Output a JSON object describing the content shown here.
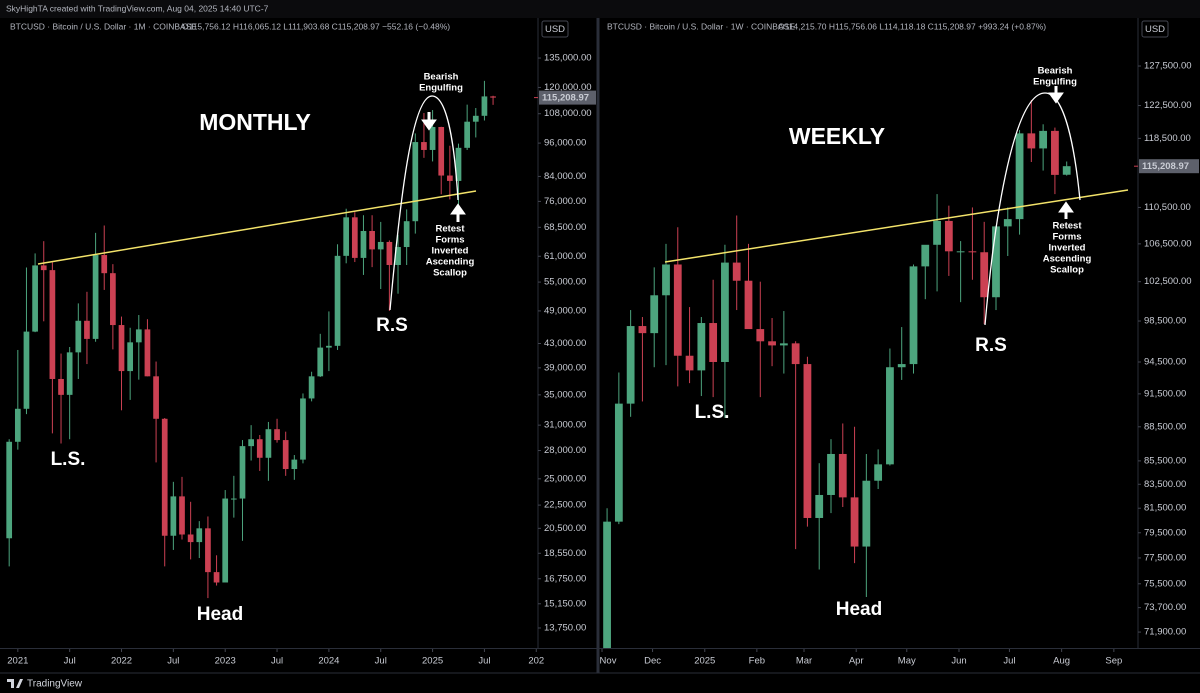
{
  "header": "SkyHighTA created with TradingView.com, Aug 04, 2025 14:40 UTC-7",
  "footer": "TradingView",
  "chart_data": [
    {
      "type": "candlestick",
      "title": "BTCUSD · Bitcoin / U.S. Dollar · 1M · COINBASE",
      "ohlc_label": "O115,756.12 H116,065.12 L111,903.68 C115,208.97 −552.16 (−0.48%)",
      "ohlc_label_color": "#cc4153",
      "currency": "USD",
      "log_scale": true,
      "grid": false,
      "up_color": "#4da57e",
      "down_color": "#cc4153",
      "xlim": [
        -1.6,
        60.2
      ],
      "xticks": [
        {
          "value": 0,
          "label": "2021"
        },
        {
          "value": 6,
          "label": "Jul"
        },
        {
          "value": 12,
          "label": "2022"
        },
        {
          "value": 18,
          "label": "Jul"
        },
        {
          "value": 24,
          "label": "2023"
        },
        {
          "value": 30,
          "label": "Jul"
        },
        {
          "value": 36,
          "label": "2024"
        },
        {
          "value": 42,
          "label": "Jul"
        },
        {
          "value": 48,
          "label": "2025"
        },
        {
          "value": 54,
          "label": "Jul"
        },
        {
          "value": 60,
          "label": "202"
        }
      ],
      "ylim": [
        12690,
        158500
      ],
      "yticks": [
        {
          "value": 135000,
          "label": "135,000.00"
        },
        {
          "value": 120000,
          "label": "120,000.00"
        },
        {
          "value": 108000,
          "label": "108,000.00"
        },
        {
          "value": 96000,
          "label": "96,000.00"
        },
        {
          "value": 84000,
          "label": "84,000.00"
        },
        {
          "value": 76000,
          "label": "76,000.00"
        },
        {
          "value": 68500,
          "label": "68,500.00"
        },
        {
          "value": 61000,
          "label": "61,000.00"
        },
        {
          "value": 55000,
          "label": "55,000.00"
        },
        {
          "value": 49000,
          "label": "49,000.00"
        },
        {
          "value": 43000,
          "label": "43,000.00"
        },
        {
          "value": 39000,
          "label": "39,000.00"
        },
        {
          "value": 35000,
          "label": "35,000.00"
        },
        {
          "value": 31000,
          "label": "31,000.00"
        },
        {
          "value": 28000,
          "label": "28,000.00"
        },
        {
          "value": 25000,
          "label": "25,000.00"
        },
        {
          "value": 22500,
          "label": "22,500.00"
        },
        {
          "value": 20500,
          "label": "20,500.00"
        },
        {
          "value": 18550,
          "label": "18,550.00"
        },
        {
          "value": 16750,
          "label": "16,750.00"
        },
        {
          "value": 15150,
          "label": "15,150.00"
        },
        {
          "value": 13750,
          "label": "13,750.00"
        }
      ],
      "last_price": {
        "value": 115208.97,
        "label": "115,208.97"
      },
      "x": [
        -1,
        0,
        1,
        2,
        3,
        4,
        5,
        6,
        7,
        8,
        9,
        10,
        11,
        12,
        13,
        14,
        15,
        16,
        17,
        18,
        19,
        20,
        21,
        22,
        23,
        24,
        25,
        26,
        27,
        28,
        29,
        30,
        31,
        32,
        33,
        34,
        35,
        36,
        37,
        38,
        39,
        40,
        41,
        42,
        43,
        44,
        45,
        46,
        47,
        48,
        49,
        50,
        51,
        52,
        53,
        54,
        55
      ],
      "open": [
        19700,
        29000,
        33100,
        45100,
        58800,
        57700,
        37300,
        35000,
        41500,
        47100,
        43800,
        61300,
        57000,
        46300,
        38500,
        43200,
        45500,
        37700,
        31800,
        19900,
        23300,
        20000,
        19400,
        20500,
        17200,
        16500,
        23100,
        23100,
        28500,
        29300,
        27200,
        30500,
        29200,
        26000,
        27000,
        34500,
        37700,
        42300,
        42600,
        61100,
        71300,
        60600,
        67500,
        62700,
        64600,
        58900,
        63300,
        70200,
        96400,
        93400,
        102400,
        84300,
        82500,
        94200,
        104600,
        107100,
        115756.12
      ],
      "high": [
        29300,
        41900,
        58300,
        61700,
        64800,
        59500,
        41300,
        42400,
        50500,
        52900,
        67000,
        69000,
        59100,
        47900,
        45800,
        48200,
        47400,
        40000,
        31900,
        24700,
        25200,
        22800,
        21100,
        21500,
        18400,
        23900,
        25300,
        29200,
        31000,
        29800,
        31400,
        31800,
        30200,
        27500,
        35200,
        38400,
        44700,
        48900,
        64000,
        73800,
        72800,
        71900,
        71900,
        70000,
        65000,
        66500,
        73600,
        99800,
        108300,
        109600,
        102500,
        95000,
        95800,
        112000,
        110500,
        123200,
        116065.12
      ],
      "low": [
        17600,
        28100,
        32400,
        45000,
        47000,
        30000,
        28800,
        29300,
        37300,
        39600,
        43300,
        53300,
        42000,
        32900,
        34300,
        37200,
        37700,
        26700,
        17600,
        18800,
        19600,
        18100,
        18200,
        15500,
        16300,
        16500,
        21400,
        19500,
        26900,
        25800,
        24800,
        28900,
        25300,
        24900,
        26600,
        34100,
        37600,
        38500,
        41900,
        59300,
        59600,
        56600,
        58400,
        53500,
        49000,
        52500,
        58900,
        66800,
        90500,
        89200,
        78200,
        76600,
        74600,
        93400,
        98200,
        105100,
        111903.68
      ],
      "close": [
        29000,
        33100,
        45100,
        58800,
        57700,
        37300,
        35000,
        41500,
        47100,
        43800,
        61300,
        57000,
        46300,
        38500,
        43200,
        45500,
        37700,
        31800,
        19900,
        23300,
        20000,
        19400,
        20500,
        17200,
        16500,
        23100,
        23100,
        28500,
        29300,
        27200,
        30500,
        29200,
        26000,
        27000,
        34500,
        37700,
        42300,
        42600,
        61100,
        71300,
        60600,
        67500,
        62700,
        64600,
        58900,
        63300,
        70200,
        96400,
        93400,
        102400,
        84300,
        82500,
        94200,
        104600,
        107100,
        115756,
        115208.97
      ],
      "annotations": {
        "label": "MONTHLY",
        "left_shoulder": "L.S.",
        "head": "Head",
        "right_shoulder": "R.S",
        "top_note": [
          "Bearish",
          "Engulfing"
        ],
        "bottom_note": [
          "Retest",
          "Forms",
          "Inverted",
          "Ascending",
          "Scallop"
        ]
      }
    },
    {
      "type": "candlestick",
      "title": "BTCUSD · Bitcoin / U.S. Dollar · 1W · COINBASE",
      "ohlc_label": "O114,215.70 H115,756.06 L114,118.18 C115,208.97 +993.24 (+0.87%)",
      "ohlc_label_color": "#4da57e",
      "currency": "USD",
      "log_scale": true,
      "grid": false,
      "up_color": "#4da57e",
      "down_color": "#cc4153",
      "xlim": [
        -0.6,
        45.05
      ],
      "xticks": [
        {
          "value": -0.43,
          "label": "Nov"
        },
        {
          "value": 3.86,
          "label": "Dec"
        },
        {
          "value": 8.29,
          "label": "2025"
        },
        {
          "value": 12.71,
          "label": "Feb"
        },
        {
          "value": 16.71,
          "label": "Mar"
        },
        {
          "value": 21.14,
          "label": "Apr"
        },
        {
          "value": 25.43,
          "label": "May"
        },
        {
          "value": 29.86,
          "label": "Jun"
        },
        {
          "value": 34.14,
          "label": "Jul"
        },
        {
          "value": 38.57,
          "label": "Aug"
        },
        {
          "value": 43,
          "label": "Sep"
        }
      ],
      "ylim": [
        70750,
        133850
      ],
      "yticks": [
        {
          "value": 127500,
          "label": "127,500.00"
        },
        {
          "value": 122500,
          "label": "122,500.00"
        },
        {
          "value": 118500,
          "label": "118,500.00"
        },
        {
          "value": 110500,
          "label": "110,500.00"
        },
        {
          "value": 106500,
          "label": "106,500.00"
        },
        {
          "value": 102500,
          "label": "102,500.00"
        },
        {
          "value": 98500,
          "label": "98,500.00"
        },
        {
          "value": 94500,
          "label": "94,500.00"
        },
        {
          "value": 91500,
          "label": "91,500.00"
        },
        {
          "value": 88500,
          "label": "88,500.00"
        },
        {
          "value": 85500,
          "label": "85,500.00"
        },
        {
          "value": 83500,
          "label": "83,500.00"
        },
        {
          "value": 81500,
          "label": "81,500.00"
        },
        {
          "value": 79500,
          "label": "79,500.00"
        },
        {
          "value": 77500,
          "label": "77,500.00"
        },
        {
          "value": 75500,
          "label": "75,500.00"
        },
        {
          "value": 73700,
          "label": "73,700.00"
        },
        {
          "value": 71900,
          "label": "71,900.00"
        }
      ],
      "last_price": {
        "value": 115208.97,
        "label": "115,208.97"
      },
      "x": [
        0,
        1,
        2,
        3,
        4,
        5,
        6,
        7,
        8,
        9,
        10,
        11,
        12,
        13,
        14,
        15,
        16,
        17,
        18,
        19,
        20,
        21,
        22,
        23,
        24,
        25,
        26,
        27,
        28,
        29,
        30,
        31,
        32,
        33,
        34,
        35,
        36,
        37,
        38,
        39
      ],
      "open": [
        68800,
        80400,
        90600,
        98000,
        97300,
        101100,
        104300,
        95100,
        93700,
        98300,
        94500,
        104500,
        102600,
        97700,
        96500,
        96100,
        96300,
        94300,
        80700,
        82600,
        86100,
        82400,
        78400,
        83800,
        85200,
        94000,
        94300,
        104100,
        106400,
        109000,
        105700,
        105700,
        105600,
        100900,
        108400,
        109200,
        119100,
        117300,
        119400,
        114215.7
      ],
      "high": [
        81500,
        93500,
        99600,
        98900,
        104000,
        106500,
        108300,
        99900,
        98900,
        102700,
        106400,
        109600,
        106500,
        102500,
        98800,
        99500,
        96500,
        95000,
        85300,
        87400,
        88800,
        88500,
        86100,
        86500,
        95800,
        97900,
        104300,
        105800,
        112000,
        110700,
        106800,
        110500,
        108900,
        108500,
        110500,
        119500,
        123200,
        120200,
        119800,
        115756.06
      ],
      "low": [
        66800,
        80200,
        89400,
        90800,
        94000,
        94200,
        92200,
        92500,
        91300,
        91200,
        89300,
        99600,
        97800,
        91200,
        94100,
        93400,
        78200,
        80000,
        76600,
        81100,
        81600,
        77100,
        74500,
        83100,
        85100,
        92800,
        93400,
        100700,
        101500,
        103100,
        100400,
        102700,
        98200,
        99600,
        105200,
        107500,
        115700,
        114700,
        112000,
        114118.18
      ],
      "close": [
        80400,
        90600,
        98000,
        97300,
        101100,
        104300,
        95100,
        93700,
        98300,
        94500,
        104500,
        102600,
        97700,
        96500,
        96100,
        96300,
        94300,
        80700,
        82600,
        86100,
        82400,
        78400,
        83800,
        85200,
        94000,
        94300,
        104100,
        106400,
        109000,
        105700,
        105700,
        105600,
        100900,
        108400,
        109200,
        119100,
        117300,
        119400,
        114200,
        115208.97
      ],
      "annotations": {
        "label": "WEEKLY",
        "left_shoulder": "L.S.",
        "head": "Head",
        "right_shoulder": "R.S",
        "top_note": [
          "Bearish",
          "Engulfing"
        ],
        "bottom_note": [
          "Retest",
          "Forms",
          "Inverted",
          "Ascending",
          "Scallop"
        ]
      }
    }
  ]
}
